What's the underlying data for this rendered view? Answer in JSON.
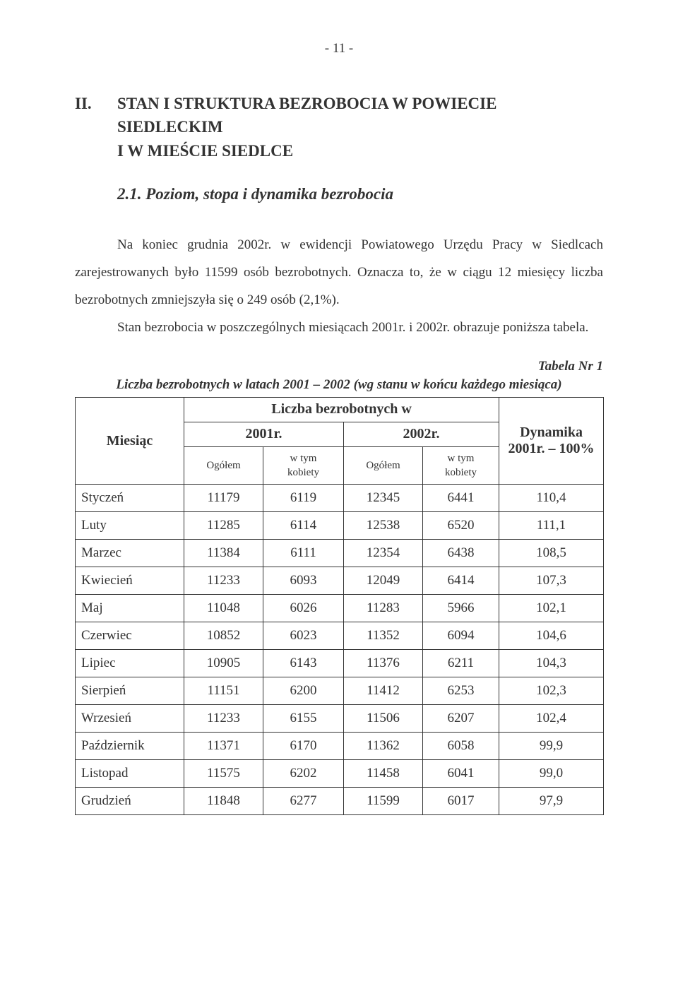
{
  "page_number": "- 11 -",
  "heading": {
    "roman": "II.",
    "line1": "STAN I STRUKTURA BEZROBOCIA W POWIECIE SIEDLECKIM",
    "line2": "I  W  MIEŚCIE  SIEDLCE"
  },
  "subheading": "2.1.   Poziom, stopa i dynamika bezrobocia",
  "paragraph1_a": "Na koniec grudnia 2002r. w ewidencji Powiatowego Urzędu Pracy w Siedlcach",
  "paragraph1_b": "zarejestrowanych było 11599 osób bezrobotnych. Oznacza to, że w ciągu 12 miesięcy liczba bezrobotnych zmniejszyła się o 249 osób (2,1%).",
  "paragraph2_a": "Stan bezrobocia w poszczególnych miesiącach 2001r. i 2002r. obrazuje",
  "paragraph2_b": "poniższa tabela.",
  "table": {
    "label": "Tabela Nr 1",
    "caption": "Liczba bezrobotnych w latach 2001 – 2002 (wg stanu w końcu każdego miesiąca)",
    "headers": {
      "col_month": "Miesiąc",
      "group_top": "Liczba bezrobotnych  w",
      "year_2001": "2001r.",
      "year_2002": "2002r.",
      "ogolem": "Ogółem",
      "wtym": "w tym",
      "kobiety": "kobiety",
      "dynamika_l1": "Dynamika",
      "dynamika_l2": "2001r. – 100%"
    },
    "rows": [
      {
        "m": "Styczeń",
        "a": "11179",
        "b": "6119",
        "c": "12345",
        "d": "6441",
        "e": "110,4"
      },
      {
        "m": "Luty",
        "a": "11285",
        "b": "6114",
        "c": "12538",
        "d": "6520",
        "e": "111,1"
      },
      {
        "m": "Marzec",
        "a": "11384",
        "b": "6111",
        "c": "12354",
        "d": "6438",
        "e": "108,5"
      },
      {
        "m": "Kwiecień",
        "a": "11233",
        "b": "6093",
        "c": "12049",
        "d": "6414",
        "e": "107,3"
      },
      {
        "m": "Maj",
        "a": "11048",
        "b": "6026",
        "c": "11283",
        "d": "5966",
        "e": "102,1"
      },
      {
        "m": "Czerwiec",
        "a": "10852",
        "b": "6023",
        "c": "11352",
        "d": "6094",
        "e": "104,6"
      },
      {
        "m": "Lipiec",
        "a": "10905",
        "b": "6143",
        "c": "11376",
        "d": "6211",
        "e": "104,3"
      },
      {
        "m": "Sierpień",
        "a": "11151",
        "b": "6200",
        "c": "11412",
        "d": "6253",
        "e": "102,3"
      },
      {
        "m": "Wrzesień",
        "a": "11233",
        "b": "6155",
        "c": "11506",
        "d": "6207",
        "e": "102,4"
      },
      {
        "m": "Październik",
        "a": "11371",
        "b": "6170",
        "c": "11362",
        "d": "6058",
        "e": "99,9"
      },
      {
        "m": "Listopad",
        "a": "11575",
        "b": "6202",
        "c": "11458",
        "d": "6041",
        "e": "99,0"
      },
      {
        "m": "Grudzień",
        "a": "11848",
        "b": "6277",
        "c": "11599",
        "d": "6017",
        "e": "97,9"
      }
    ]
  }
}
